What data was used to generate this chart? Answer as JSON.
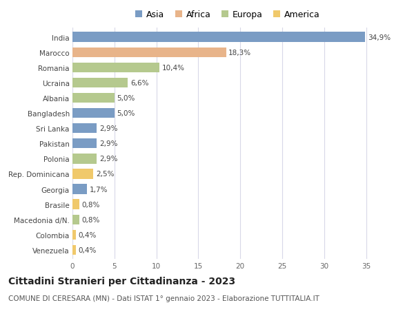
{
  "countries": [
    "India",
    "Marocco",
    "Romania",
    "Ucraina",
    "Albania",
    "Bangladesh",
    "Sri Lanka",
    "Pakistan",
    "Polonia",
    "Rep. Dominicana",
    "Georgia",
    "Brasile",
    "Macedonia d/N.",
    "Colombia",
    "Venezuela"
  ],
  "values": [
    34.9,
    18.3,
    10.4,
    6.6,
    5.0,
    5.0,
    2.9,
    2.9,
    2.9,
    2.5,
    1.7,
    0.8,
    0.8,
    0.4,
    0.4
  ],
  "labels": [
    "34,9%",
    "18,3%",
    "10,4%",
    "6,6%",
    "5,0%",
    "5,0%",
    "2,9%",
    "2,9%",
    "2,9%",
    "2,5%",
    "1,7%",
    "0,8%",
    "0,8%",
    "0,4%",
    "0,4%"
  ],
  "continents": [
    "Asia",
    "Africa",
    "Europa",
    "Europa",
    "Europa",
    "Asia",
    "Asia",
    "Asia",
    "Europa",
    "America",
    "Asia",
    "America",
    "Europa",
    "America",
    "America"
  ],
  "colors": {
    "Asia": "#7a9cc4",
    "Africa": "#e8b48a",
    "Europa": "#b5c98e",
    "America": "#f0c96b"
  },
  "legend_order": [
    "Asia",
    "Africa",
    "Europa",
    "America"
  ],
  "title": "Cittadini Stranieri per Cittadinanza - 2023",
  "subtitle": "COMUNE DI CERESARA (MN) - Dati ISTAT 1° gennaio 2023 - Elaborazione TUTTITALIA.IT",
  "xlim": [
    0,
    37
  ],
  "xticks": [
    0,
    5,
    10,
    15,
    20,
    25,
    30,
    35
  ],
  "background_color": "#ffffff",
  "grid_color": "#d8d8e8",
  "bar_height": 0.65,
  "title_fontsize": 10,
  "subtitle_fontsize": 7.5,
  "label_fontsize": 7.5,
  "tick_fontsize": 7.5,
  "legend_fontsize": 9
}
